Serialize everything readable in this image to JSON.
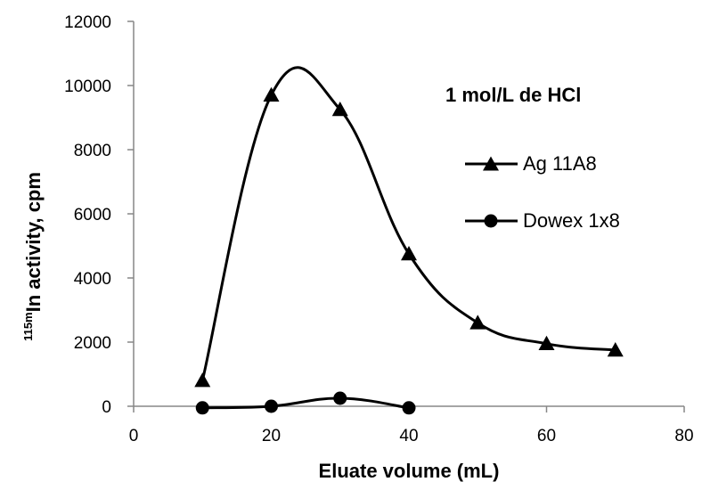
{
  "chart_data": {
    "type": "line",
    "title": "",
    "annotation": "1 mol/L de HCl",
    "xlabel": "Eluate volume (mL)",
    "ylabel_prefix": "115m",
    "ylabel_main": "In activity,  cpm",
    "xlim": [
      0,
      80
    ],
    "ylim": [
      0,
      12000
    ],
    "xticks": [
      "0",
      "20",
      "40",
      "60",
      "80"
    ],
    "yticks": [
      "0",
      "2000",
      "4000",
      "6000",
      "8000",
      "10000",
      "12000"
    ],
    "grid": false,
    "legend_position": "right",
    "series": [
      {
        "name": "Ag 11A8",
        "marker": "triangle",
        "smooth": true,
        "x": [
          10,
          20,
          30,
          40,
          50,
          60,
          70
        ],
        "y": [
          800,
          9700,
          9250,
          4750,
          2600,
          1950,
          1750
        ]
      },
      {
        "name": "Dowex 1x8",
        "marker": "circle",
        "smooth": true,
        "x": [
          10,
          20,
          30,
          40
        ],
        "y": [
          -50,
          0,
          250,
          -50
        ]
      }
    ]
  }
}
